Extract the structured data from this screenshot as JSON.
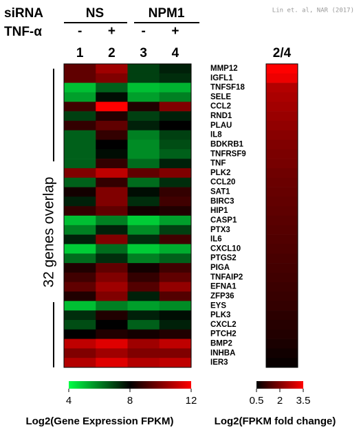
{
  "citation": "Lin et. al, NAR (2017)",
  "chart_data": [
    {
      "type": "heatmap",
      "group_label": "siRNA",
      "groups": [
        "NS",
        "NPM1"
      ],
      "treatment_label": "TNF-α",
      "treatments": [
        "-",
        "+",
        "-",
        "+"
      ],
      "columns": [
        "1",
        "2",
        "3",
        "4"
      ],
      "rows": [
        "MMP12",
        "IGFL1",
        "TNFSF18",
        "SELE",
        "CCL2",
        "RND1",
        "PLAU",
        "IL8",
        "BDKRB1",
        "TNFRSF9",
        "TNF",
        "PLK2",
        "CCL20",
        "SAT1",
        "BIRC3",
        "HIP1",
        "CASP1",
        "PTX3",
        "IL6",
        "CXCL10",
        "PTGS2",
        "PIGA",
        "TNFAIP2",
        "EFNA1",
        "ZFP36",
        "EYS",
        "PLK3",
        "CXCL2",
        "PTCH2",
        "BMP2",
        "INHBA",
        "IER3"
      ],
      "values": [
        [
          9.5,
          10.5,
          7,
          7.5
        ],
        [
          9.5,
          10,
          7,
          7.3
        ],
        [
          5,
          6.5,
          5,
          5.2
        ],
        [
          5.5,
          7.8,
          5.5,
          6
        ],
        [
          9,
          12,
          8.5,
          10
        ],
        [
          7,
          8.5,
          7,
          7.5
        ],
        [
          8.8,
          9.5,
          7.5,
          8
        ],
        [
          6.5,
          8.8,
          6,
          7
        ],
        [
          6.5,
          8,
          5.8,
          6.8
        ],
        [
          6.5,
          7.8,
          5.8,
          6.5
        ],
        [
          6.5,
          8.8,
          6.3,
          7.5
        ],
        [
          10,
          11,
          9.5,
          10
        ],
        [
          6.5,
          8.8,
          6.3,
          7.3
        ],
        [
          8.3,
          10,
          7.8,
          8.8
        ],
        [
          7.5,
          10,
          7.3,
          9
        ],
        [
          8.8,
          9.5,
          8.3,
          8.5
        ],
        [
          5,
          6,
          4.8,
          5.5
        ],
        [
          6,
          7.5,
          5.8,
          7
        ],
        [
          7.5,
          10,
          7.3,
          9
        ],
        [
          4.8,
          6.3,
          4.8,
          5.3
        ],
        [
          6.3,
          7.3,
          6,
          6.5
        ],
        [
          8.5,
          9.5,
          8.3,
          9
        ],
        [
          9,
          10,
          8.8,
          9.5
        ],
        [
          9.5,
          10.5,
          9.3,
          10.3
        ],
        [
          8.5,
          10,
          7.5,
          9.3
        ],
        [
          5,
          6,
          5.5,
          5.8
        ],
        [
          7.3,
          8.5,
          7.5,
          7.8
        ],
        [
          6.8,
          8,
          6.5,
          7.5
        ],
        [
          8,
          8.5,
          8.3,
          8.5
        ],
        [
          11,
          11.5,
          10.5,
          11
        ],
        [
          10,
          10.5,
          10,
          10
        ],
        [
          10.8,
          11.5,
          10.8,
          11
        ]
      ],
      "side_label": "32 genes overlap",
      "clim": [
        4,
        12
      ],
      "cticks": [
        4,
        8,
        12
      ],
      "colormap": [
        "#00ff44",
        "#000000",
        "#ff0000"
      ],
      "colorbar_label": "Log2(Gene Expression FPKM)"
    },
    {
      "type": "heatmap",
      "columns": [
        "2/4"
      ],
      "values": [
        3.5,
        3.3,
        2.6,
        2.5,
        2.4,
        2.3,
        2.2,
        2.1,
        2.0,
        1.95,
        1.9,
        1.8,
        1.75,
        1.7,
        1.65,
        1.6,
        1.55,
        1.5,
        1.45,
        1.4,
        1.35,
        1.3,
        1.25,
        1.2,
        1.15,
        1.1,
        1.0,
        0.95,
        0.9,
        0.8,
        0.7,
        0.6
      ],
      "clim": [
        0.5,
        3.5
      ],
      "cticks": [
        0.5,
        2,
        3.5
      ],
      "colormap": [
        "#000000",
        "#ff0000"
      ],
      "colorbar_label": "Log2(FPKM fold change)"
    }
  ]
}
